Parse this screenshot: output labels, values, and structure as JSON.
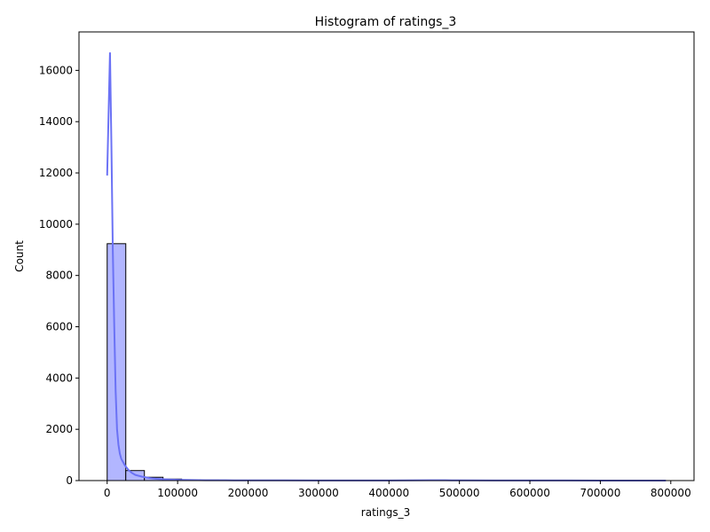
{
  "chart_data": {
    "type": "bar",
    "title": "Histogram of ratings_3",
    "xlabel": "ratings_3",
    "ylabel": "Count",
    "xlim": [
      -40000,
      833000
    ],
    "ylim": [
      0,
      17500
    ],
    "x_ticks": [
      {
        "value": 0,
        "label": "0"
      },
      {
        "value": 100000,
        "label": "100000"
      },
      {
        "value": 200000,
        "label": "200000"
      },
      {
        "value": 300000,
        "label": "300000"
      },
      {
        "value": 400000,
        "label": "400000"
      },
      {
        "value": 500000,
        "label": "500000"
      },
      {
        "value": 600000,
        "label": "600000"
      },
      {
        "value": 700000,
        "label": "700000"
      },
      {
        "value": 800000,
        "label": "800000"
      }
    ],
    "y_ticks": [
      {
        "value": 0,
        "label": "0"
      },
      {
        "value": 2000,
        "label": "2000"
      },
      {
        "value": 4000,
        "label": "4000"
      },
      {
        "value": 6000,
        "label": "6000"
      },
      {
        "value": 8000,
        "label": "8000"
      },
      {
        "value": 10000,
        "label": "10000"
      },
      {
        "value": 12000,
        "label": "12000"
      },
      {
        "value": 14000,
        "label": "14000"
      },
      {
        "value": 16000,
        "label": "16000"
      }
    ],
    "bin_edges": [
      0,
      26433,
      52866,
      79299,
      105732,
      132165,
      158598,
      185031,
      211464,
      237897,
      264330,
      290763,
      317196,
      343629,
      370062,
      396495,
      422928,
      449361,
      475794,
      502227,
      528660,
      555093,
      581526,
      607959,
      634392,
      660825,
      687258,
      713691,
      740124,
      766557,
      793000
    ],
    "counts": [
      9240,
      390,
      130,
      60,
      30,
      20,
      15,
      10,
      8,
      6,
      5,
      4,
      4,
      3,
      3,
      2,
      3,
      5,
      4,
      3,
      2,
      1,
      1,
      1,
      1,
      1,
      1,
      0,
      0,
      1
    ],
    "kde": {
      "x": [
        0,
        2000,
        4000,
        6000,
        8000,
        10000,
        12000,
        14000,
        16000,
        18000,
        20000,
        25000,
        30000,
        35000,
        40000,
        50000,
        60000,
        70000,
        80000,
        90000,
        100000,
        120000,
        140000,
        160000,
        180000,
        200000,
        250000,
        300000,
        350000,
        400000,
        430000,
        460000,
        480000,
        500000,
        550000,
        600000,
        650000,
        700000,
        750000,
        793000
      ],
      "y": [
        11900,
        14300,
        16700,
        13100,
        9000,
        6100,
        3500,
        2000,
        1400,
        1050,
        850,
        600,
        420,
        300,
        220,
        150,
        100,
        70,
        50,
        40,
        30,
        20,
        15,
        12,
        10,
        9,
        7,
        6,
        5,
        6,
        10,
        14,
        12,
        8,
        5,
        4,
        3,
        2,
        2,
        1
      ]
    },
    "bar_color": "#b2b6ff",
    "bar_edge_color": "#000000",
    "kde_color": "#6b72f5",
    "grid": false
  }
}
